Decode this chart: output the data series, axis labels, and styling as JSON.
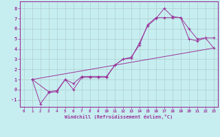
{
  "xlabel": "Windchill (Refroidissement éolien,°C)",
  "xlim": [
    -0.5,
    23.5
  ],
  "ylim": [
    -1.7,
    8.7
  ],
  "yticks": [
    -1,
    0,
    1,
    2,
    3,
    4,
    5,
    6,
    7,
    8
  ],
  "xticks": [
    0,
    1,
    2,
    3,
    4,
    5,
    6,
    7,
    8,
    9,
    10,
    11,
    12,
    13,
    14,
    15,
    16,
    17,
    18,
    19,
    20,
    21,
    22,
    23
  ],
  "bg_color": "#c6eef0",
  "grid_color": "#b0cccc",
  "line_color": "#993399",
  "lines": [
    {
      "x": [
        1,
        2,
        3,
        4,
        5,
        6,
        7,
        8,
        9,
        10,
        11,
        12,
        13,
        14,
        15,
        16,
        17,
        18,
        19,
        20,
        21,
        22,
        23
      ],
      "y": [
        1,
        -1.4,
        -0.3,
        -0.2,
        1.0,
        0.0,
        1.2,
        1.2,
        1.2,
        1.2,
        2.4,
        3.0,
        3.1,
        4.6,
        6.3,
        7.0,
        8.0,
        7.2,
        7.1,
        6.0,
        5.0,
        5.1,
        4.1
      ],
      "marker": true
    },
    {
      "x": [
        1,
        3,
        4,
        5,
        6,
        7,
        8,
        9,
        10,
        11,
        12,
        13,
        14,
        15,
        16,
        17,
        18,
        19,
        20,
        21,
        22,
        23
      ],
      "y": [
        1,
        -0.2,
        -0.1,
        1.0,
        0.6,
        1.3,
        1.3,
        1.3,
        1.3,
        2.4,
        3.0,
        3.2,
        4.4,
        6.4,
        7.1,
        7.1,
        7.1,
        7.1,
        5.0,
        4.8,
        5.1,
        5.1
      ],
      "marker": true
    },
    {
      "x": [
        1,
        23
      ],
      "y": [
        1,
        4.1
      ],
      "marker": false
    }
  ]
}
